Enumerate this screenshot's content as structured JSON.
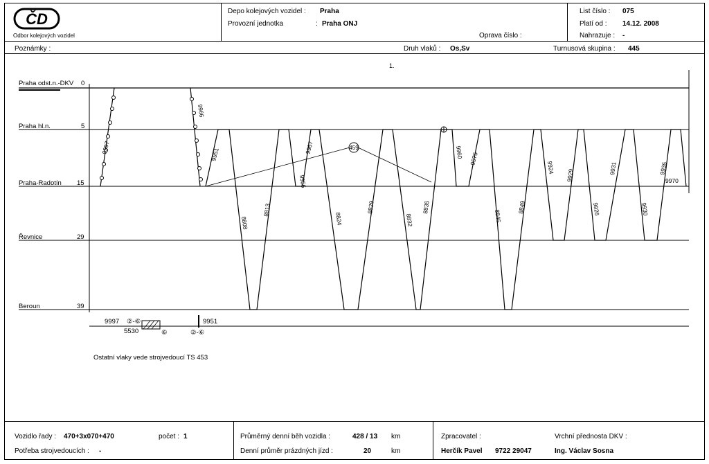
{
  "header": {
    "logo_text": "ČD",
    "org_label": "Odbor kolejových vozidel",
    "depo_label": "Depo kolejových vozidel :",
    "depo_value": "Praha",
    "unit_label": "Provozní jednotka",
    "unit_colon": ":",
    "unit_value": "Praha ONJ",
    "repair_label": "Oprava číslo :",
    "sheet_label": "List číslo :",
    "sheet_value": "075",
    "valid_label": "Platí od :",
    "valid_value": "14.12. 2008",
    "replaces_label": "Nahrazuje :",
    "replaces_value": "-"
  },
  "info_row": {
    "notes_label": "Poznámky :",
    "train_kinds_label": "Druh vlaků :",
    "train_kinds_value": "Os,Sv",
    "group_label": "Turnusová skupina :",
    "group_value": "445"
  },
  "diagram": {
    "day_label": "1.",
    "stations": [
      {
        "name": "Praha odst.n.-DKV",
        "km": "0"
      },
      {
        "name": "Praha hl.n.",
        "km": "5"
      },
      {
        "name": "Praha-Radotín",
        "km": "15"
      },
      {
        "name": "Řevnice",
        "km": "29"
      },
      {
        "name": "Beroun",
        "km": "39"
      }
    ],
    "trains": [
      "9997",
      "9966",
      "9951",
      "8808",
      "8813",
      "9955",
      "9967",
      "8824",
      "8829",
      "8832",
      "8835",
      "9960",
      "9975",
      "8846",
      "8849",
      "9924",
      "9929",
      "9926",
      "9931",
      "9930",
      "9935",
      "9970"
    ],
    "crew_change_label": "459",
    "bottom_block": {
      "train1": "9997",
      "mark1": "②-⑥",
      "train2": "5530",
      "mark2": "⑥",
      "train3": "9951",
      "mark3": "②-⑥"
    },
    "note": "Ostatní vlaky vede strojvedoucí TS 453"
  },
  "footer": {
    "vehicle_label": "Vozidlo řady :",
    "vehicle_value": "470+3x070+470",
    "count_label": "počet :",
    "count_value": "1",
    "avg_run_label": "Průměrný denní běh vozidla :",
    "avg_run_value": "428 / 13",
    "km1": "km",
    "drivers_label": "Potřeba strojvedoucích :",
    "drivers_value": "-",
    "empty_run_label": "Denní průměr prázdných jízd :",
    "empty_run_value": "20",
    "km2": "km",
    "processor_label": "Zpracovatel :",
    "processor_name": "Herčík Pavel",
    "processor_phone": "9722 29047",
    "chief_label": "Vrchní přednosta DKV :",
    "chief_name": "Ing. Václav Sosna"
  }
}
